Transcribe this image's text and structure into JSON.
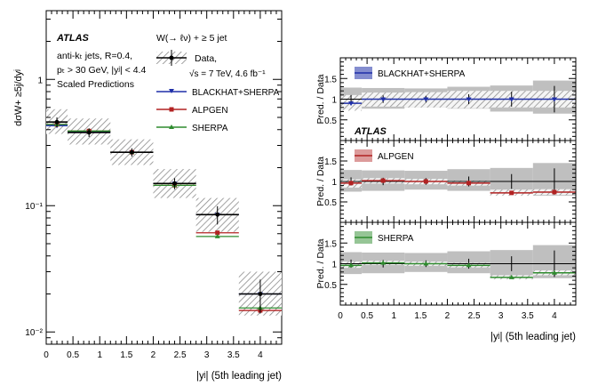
{
  "colors": {
    "blackhat": "#1f2fa8",
    "alpgen": "#b22222",
    "sherpa": "#2e8b2e",
    "data": "#000000",
    "band": "#9a9a9a"
  },
  "left_panel": {
    "experiment": "ATLAS",
    "info_lines": [
      "anti-kₜ jets, R=0.4,",
      "pₜ > 30 GeV, |yʲ| < 4.4",
      "Scaled Predictions"
    ],
    "process": "W(→ ℓν) + ≥ 5 jet",
    "legend_data": "Data,",
    "lumi": "√s = 7 TeV, 4.6 fb⁻¹",
    "legend_blackhat": "BLACKHAT+SHERPA",
    "legend_alpgen": "ALPGEN",
    "legend_sherpa": "SHERPA",
    "ylabel": "dσW+ ≥5j/dyʲ",
    "xlabel": "|yʲ| (5th leading jet)",
    "ytick_labels": [
      "1",
      "10⁻¹",
      "10⁻²"
    ],
    "xtick_labels": [
      "0",
      "0.5",
      "1",
      "1.5",
      "2",
      "2.5",
      "3",
      "3.5",
      "4"
    ]
  },
  "right_panel": {
    "ylabel": "Pred. / Data",
    "xlabel": "|yʲ| (5th leading jet)",
    "atlas": "ATLAS",
    "ytick_labels": [
      "0.5",
      "1",
      "1.5"
    ],
    "xtick_labels": [
      "0",
      "0.5",
      "1",
      "1.5",
      "2",
      "2.5",
      "3",
      "3.5",
      "4"
    ],
    "sub_labels": [
      "BLACKHAT+SHERPA",
      "ALPGEN",
      "SHERPA"
    ]
  },
  "chart_data": [
    {
      "type": "scatter",
      "title": "W(→ ℓν) + ≥ 5 jet",
      "xlabel": "|yʲ| (5th leading jet)",
      "ylabel": "dσW+ ≥5j/dyʲ",
      "xlim": [
        0,
        4.4
      ],
      "ylim": [
        0.008,
        3.5
      ],
      "yscale": "log",
      "bins": [
        [
          0,
          0.4
        ],
        [
          0.4,
          1.2
        ],
        [
          1.2,
          2.0
        ],
        [
          2.0,
          2.8
        ],
        [
          2.8,
          3.6
        ],
        [
          3.6,
          4.4
        ]
      ],
      "x": [
        0.2,
        0.8,
        1.6,
        2.4,
        3.2,
        4.0
      ],
      "series": [
        {
          "name": "Data",
          "values": [
            0.46,
            0.38,
            0.265,
            0.15,
            0.085,
            0.02
          ],
          "syst_band": [
            [
              0.37,
              0.58
            ],
            [
              0.305,
              0.49
            ],
            [
              0.21,
              0.335
            ],
            [
              0.115,
              0.195
            ],
            [
              0.062,
              0.115
            ],
            [
              0.0135,
              0.03
            ]
          ],
          "stat_err": [
            0.04,
            0.03,
            0.02,
            0.015,
            0.014,
            0.006
          ]
        },
        {
          "name": "BLACKHAT+SHERPA",
          "values": [
            0.43,
            0.385,
            0.265,
            0.15,
            0.085,
            0.02
          ]
        },
        {
          "name": "ALPGEN",
          "values": [
            0.44,
            0.39,
            0.265,
            0.145,
            0.061,
            0.0148
          ]
        },
        {
          "name": "SHERPA",
          "values": [
            0.44,
            0.39,
            0.265,
            0.145,
            0.057,
            0.0155
          ]
        }
      ]
    },
    {
      "type": "scatter",
      "title": "Pred. / Data",
      "xlabel": "|yʲ| (5th leading jet)",
      "ylabel": "Pred. / Data",
      "xlim": [
        0,
        4.4
      ],
      "ylim": [
        0,
        2
      ],
      "x": [
        0.2,
        0.8,
        1.6,
        2.4,
        3.2,
        4.0
      ],
      "data_band": [
        [
          0.75,
          1.28
        ],
        [
          0.77,
          1.27
        ],
        [
          0.8,
          1.26
        ],
        [
          0.77,
          1.3
        ],
        [
          0.7,
          1.33
        ],
        [
          0.65,
          1.45
        ]
      ],
      "data_stat": [
        0.1,
        0.09,
        0.08,
        0.12,
        0.18,
        0.32
      ],
      "series": [
        {
          "name": "BLACKHAT+SHERPA",
          "values": [
            0.9,
            1.0,
            1.0,
            1.0,
            1.0,
            1.0
          ],
          "band": [
            [
              0.72,
              1.1
            ],
            [
              0.82,
              1.16
            ],
            [
              0.8,
              1.17
            ],
            [
              0.78,
              1.2
            ],
            [
              0.8,
              1.2
            ],
            [
              0.8,
              1.2
            ]
          ]
        },
        {
          "name": "ALPGEN",
          "values": [
            0.96,
            1.02,
            1.0,
            0.96,
            0.72,
            0.74
          ],
          "band": [
            [
              0.85,
              1.05
            ],
            [
              0.95,
              1.08
            ],
            [
              0.93,
              1.06
            ],
            [
              0.9,
              1.02
            ],
            [
              0.65,
              0.8
            ],
            [
              0.67,
              0.81
            ]
          ]
        },
        {
          "name": "SHERPA",
          "values": [
            0.96,
            1.02,
            1.0,
            0.96,
            0.67,
            0.78
          ],
          "band": [
            [
              0.9,
              1.05
            ],
            [
              0.97,
              1.07
            ],
            [
              0.95,
              1.05
            ],
            [
              0.91,
              1.02
            ],
            [
              0.62,
              0.72
            ],
            [
              0.72,
              0.84
            ]
          ]
        }
      ]
    }
  ]
}
